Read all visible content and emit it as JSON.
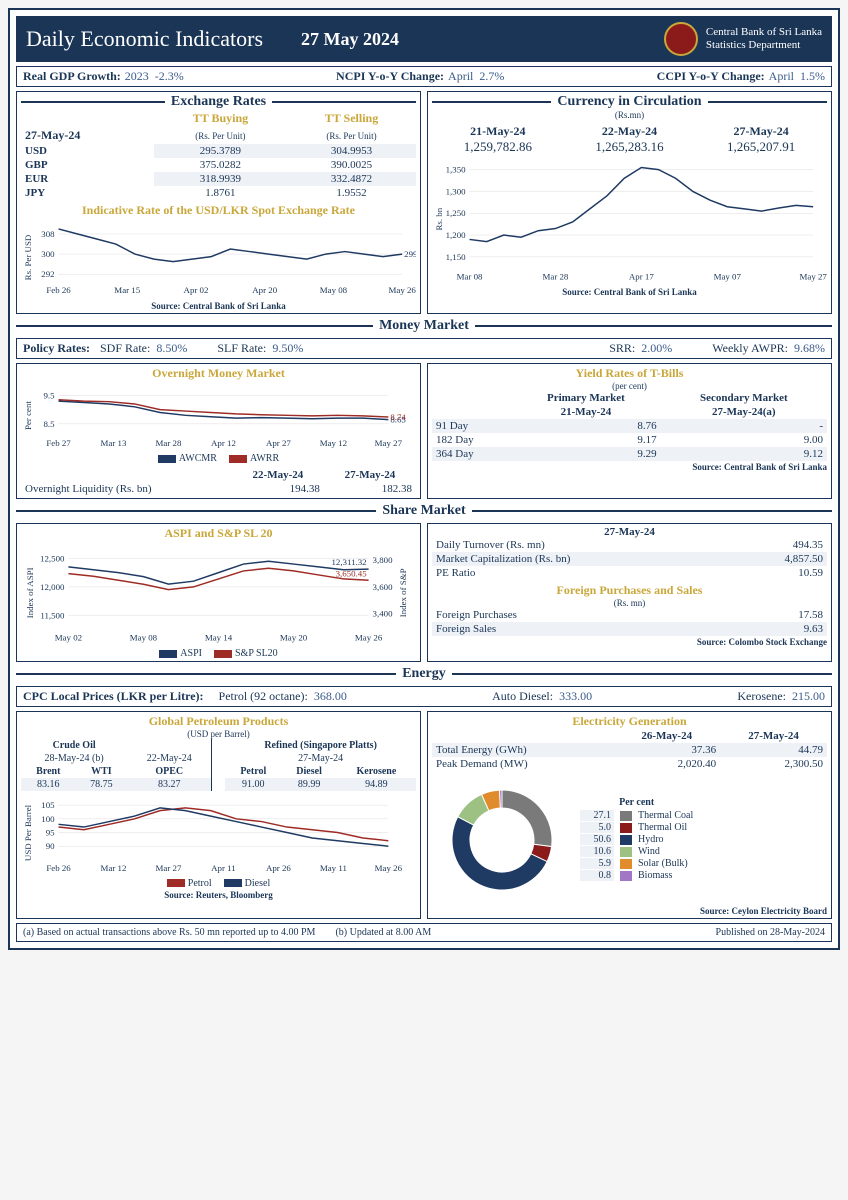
{
  "header": {
    "title": "Daily Economic Indicators",
    "date": "27 May 2024",
    "org1": "Central Bank of Sri Lanka",
    "org2": "Statistics Department"
  },
  "top_metrics": {
    "gdp_label": "Real GDP Growth:",
    "gdp_year": "2023",
    "gdp_val": "-2.3%",
    "ncpi_label": "NCPI Y-o-Y Change:",
    "ncpi_month": "April",
    "ncpi_val": "2.7%",
    "ccpi_label": "CCPI Y-o-Y Change:",
    "ccpi_month": "April",
    "ccpi_val": "1.5%"
  },
  "fx": {
    "title": "Exchange Rates",
    "buying_head": "TT Buying",
    "selling_head": "TT Selling",
    "unit": "(Rs. Per Unit)",
    "date": "27-May-24",
    "rows": [
      {
        "cur": "USD",
        "buy": "295.3789",
        "sell": "304.9953"
      },
      {
        "cur": "GBP",
        "buy": "375.0282",
        "sell": "390.0025"
      },
      {
        "cur": "EUR",
        "buy": "318.9939",
        "sell": "332.4872"
      },
      {
        "cur": "JPY",
        "buy": "1.8761",
        "sell": "1.9552"
      }
    ],
    "spot_title": "Indicative Rate of the USD/LKR Spot Exchange Rate",
    "spot_ylabel": "Rs. Per USD",
    "spot_latest": "299.99",
    "spot_chart": {
      "yticks": [
        292,
        300,
        308
      ],
      "ylim": [
        290,
        312
      ],
      "xticks": [
        "Feb 26",
        "Mar 15",
        "Apr 02",
        "Apr 20",
        "May 08",
        "May 26"
      ],
      "color": "#1f3a63",
      "points": [
        310,
        308,
        306,
        304,
        300,
        298,
        297,
        298,
        299,
        302,
        301,
        300,
        299,
        298,
        300,
        301,
        300,
        299,
        300
      ]
    },
    "source": "Source: Central Bank of Sri Lanka"
  },
  "circulation": {
    "title": "Currency in Circulation",
    "unit": "(Rs.mn)",
    "dates": [
      "21-May-24",
      "22-May-24",
      "27-May-24"
    ],
    "values": [
      "1,259,782.86",
      "1,265,283.16",
      "1,265,207.91"
    ],
    "chart": {
      "yticks": [
        1150,
        1200,
        1250,
        1300,
        1350
      ],
      "ylim": [
        1130,
        1370
      ],
      "ylabel": "Rs. bn",
      "xticks": [
        "Mar 08",
        "Mar 28",
        "Apr 17",
        "May 07",
        "May 27"
      ],
      "color": "#1f3a63",
      "points": [
        1190,
        1185,
        1200,
        1195,
        1210,
        1215,
        1230,
        1260,
        1290,
        1330,
        1355,
        1350,
        1330,
        1300,
        1280,
        1265,
        1260,
        1255,
        1262,
        1268,
        1265
      ]
    },
    "source": "Source: Central Bank of Sri Lanka"
  },
  "money": {
    "title": "Money Market",
    "policy": {
      "label": "Policy Rates:",
      "sdf_label": "SDF Rate:",
      "sdf": "8.50%",
      "slf_label": "SLF Rate:",
      "slf": "9.50%",
      "srr_label": "SRR:",
      "srr": "2.00%",
      "awpr_label": "Weekly AWPR:",
      "awpr": "9.68%"
    },
    "omm_title": "Overnight Money Market",
    "omm_ylabel": "Per cent",
    "omm_chart": {
      "yticks": [
        8.5,
        9.5
      ],
      "ylim": [
        8.2,
        9.8
      ],
      "xticks": [
        "Feb 27",
        "Mar 13",
        "Mar 28",
        "Apr 12",
        "Apr 27",
        "May 12",
        "May 27"
      ],
      "series": [
        {
          "name": "AWCMR",
          "color": "#1f3a63",
          "latest": "8.65",
          "points": [
            9.3,
            9.25,
            9.2,
            9.1,
            8.9,
            8.8,
            8.75,
            8.7,
            8.72,
            8.7,
            8.68,
            8.7,
            8.7,
            8.65
          ]
        },
        {
          "name": "AWRR",
          "color": "#9e2b25",
          "latest": "8.74",
          "points": [
            9.35,
            9.3,
            9.28,
            9.2,
            9.0,
            8.95,
            8.9,
            8.85,
            8.82,
            8.8,
            8.78,
            8.8,
            8.78,
            8.74
          ]
        }
      ]
    },
    "liq": {
      "label": "Overnight Liquidity (Rs. bn)",
      "d1": "22-May-24",
      "v1": "194.38",
      "d2": "27-May-24",
      "v2": "182.38"
    },
    "tbills": {
      "title": "Yield Rates of T-Bills",
      "unit": "(per cent)",
      "col1": "Primary Market",
      "col1_date": "21-May-24",
      "col2": "Secondary Market",
      "col2_date": "27-May-24(a)",
      "rows": [
        {
          "tenor": "91 Day",
          "p": "8.76",
          "s": "-"
        },
        {
          "tenor": "182 Day",
          "p": "9.17",
          "s": "9.00"
        },
        {
          "tenor": "364 Day",
          "p": "9.29",
          "s": "9.12"
        }
      ],
      "source": "Source: Central Bank of Sri Lanka"
    }
  },
  "share": {
    "title": "Share Market",
    "chart_title": "ASPI and S&P SL 20",
    "chart": {
      "left_ticks": [
        11500,
        12000,
        12500
      ],
      "left_lim": [
        11300,
        12700
      ],
      "left_label": "Index of ASPI",
      "right_ticks": [
        3400,
        3600,
        3800
      ],
      "right_lim": [
        3300,
        3900
      ],
      "right_label": "Index of S&P",
      "xticks": [
        "May 02",
        "May 08",
        "May 14",
        "May 20",
        "May 26"
      ],
      "aspi": {
        "color": "#1f3a63",
        "latest": "12,311.32",
        "points": [
          12350,
          12300,
          12250,
          12180,
          12050,
          12100,
          12250,
          12400,
          12450,
          12400,
          12350,
          12300,
          12311
        ]
      },
      "sp": {
        "color": "#9e2b25",
        "latest": "3,650.45",
        "points": [
          3700,
          3680,
          3650,
          3620,
          3580,
          3600,
          3660,
          3720,
          3740,
          3720,
          3690,
          3660,
          3650
        ]
      }
    },
    "summary": {
      "date": "27-May-24",
      "rows": [
        {
          "l": "Daily Turnover (Rs. mn)",
          "v": "494.35"
        },
        {
          "l": "Market Capitalization (Rs. bn)",
          "v": "4,857.50"
        },
        {
          "l": "PE Ratio",
          "v": "10.59"
        }
      ],
      "fps_title": "Foreign Purchases and Sales",
      "fps_unit": "(Rs. mn)",
      "fps_rows": [
        {
          "l": "Foreign Purchases",
          "v": "17.58"
        },
        {
          "l": "Foreign Sales",
          "v": "9.63"
        }
      ],
      "source": "Source: Colombo Stock Exchange"
    }
  },
  "energy": {
    "title": "Energy",
    "cpc": {
      "label": "CPC Local Prices (LKR per Litre):",
      "petrol_l": "Petrol (92 octane):",
      "petrol": "368.00",
      "diesel_l": "Auto Diesel:",
      "diesel": "333.00",
      "kero_l": "Kerosene:",
      "kero": "215.00"
    },
    "global": {
      "title": "Global Petroleum Products",
      "unit": "(USD per Barrel)",
      "crude_head": "Crude Oil",
      "crude_d1": "28-May-24 (b)",
      "crude_d2": "22-May-24",
      "refined_head": "Refined (Singapore Platts)",
      "refined_date": "27-May-24",
      "brent_l": "Brent",
      "brent": "83.16",
      "wti_l": "WTI",
      "wti": "78.75",
      "opec_l": "OPEC",
      "opec": "83.27",
      "rpet_l": "Petrol",
      "rpet": "91.00",
      "rdie_l": "Diesel",
      "rdie": "89.99",
      "rker_l": "Kerosene",
      "rker": "94.89",
      "chart": {
        "ylabel": "USD Per Barrel",
        "yticks": [
          90,
          95,
          100,
          105
        ],
        "ylim": [
          86,
          108
        ],
        "xticks": [
          "Feb 26",
          "Mar 12",
          "Mar 27",
          "Apr 11",
          "Apr 26",
          "May 11",
          "May 26"
        ],
        "series": [
          {
            "name": "Petrol",
            "color": "#9e2b25",
            "points": [
              97,
              96,
              98,
              100,
              103,
              104,
              103,
              100,
              99,
              97,
              96,
              95,
              93,
              92
            ]
          },
          {
            "name": "Diesel",
            "color": "#1f3a63",
            "points": [
              98,
              97,
              99,
              101,
              104,
              103,
              101,
              99,
              97,
              95,
              93,
              92,
              91,
              90
            ]
          }
        ]
      },
      "source": "Source: Reuters, Bloomberg"
    },
    "elec": {
      "title": "Electricity Generation",
      "dates": [
        "26-May-24",
        "27-May-24"
      ],
      "rows": [
        {
          "l": "Total Energy (GWh)",
          "v1": "37.36",
          "v2": "44.79"
        },
        {
          "l": "Peak Demand (MW)",
          "v1": "2,020.40",
          "v2": "2,300.50"
        }
      ],
      "mix_label": "Per cent",
      "mix": [
        {
          "name": "Thermal Coal",
          "pct": "27.1",
          "color": "#7a7a7a"
        },
        {
          "name": "Thermal Oil",
          "pct": "5.0",
          "color": "#8b1a1a"
        },
        {
          "name": "Hydro",
          "pct": "50.6",
          "color": "#1f3a63"
        },
        {
          "name": "Wind",
          "pct": "10.6",
          "color": "#9dc183"
        },
        {
          "name": "Solar (Bulk)",
          "pct": "5.9",
          "color": "#e08b2c"
        },
        {
          "name": "Biomass",
          "pct": "0.8",
          "color": "#a176c4"
        }
      ],
      "source": "Source: Ceylon Electricity Board"
    }
  },
  "footer": {
    "note_a": "(a) Based on actual transactions above Rs. 50 mn reported up to 4.00 PM",
    "note_b": "(b) Updated at 8.00 AM",
    "pub": "Published on 28-May-2024"
  }
}
